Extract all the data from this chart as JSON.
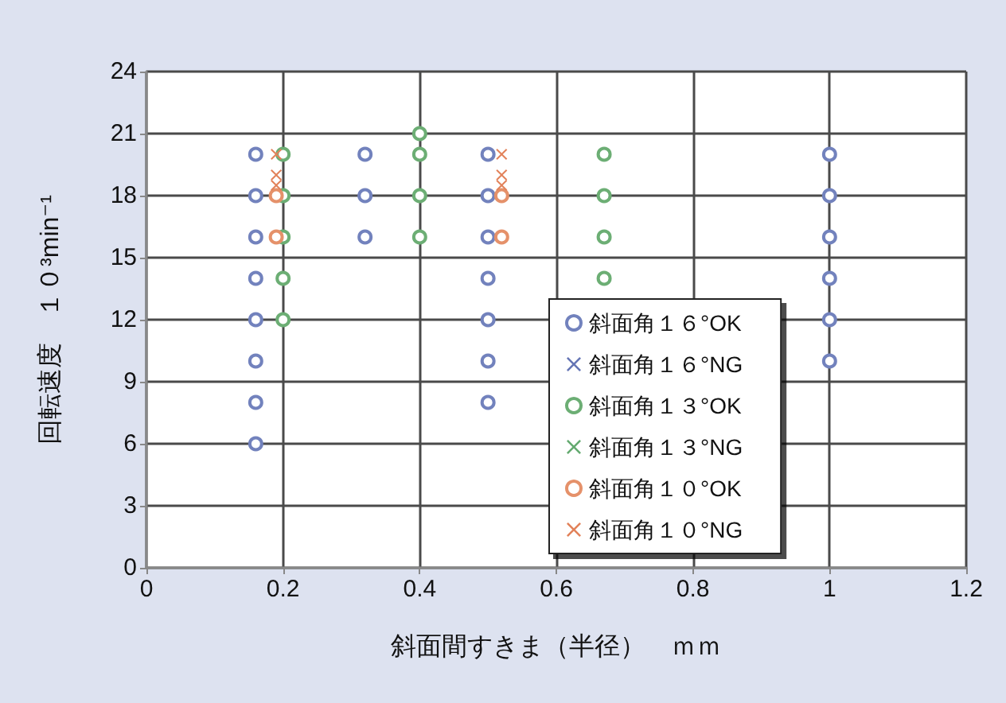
{
  "chart_data": {
    "type": "scatter",
    "xlabel": "斜面間すきま（半径）　ｍｍ",
    "ylabel": "回転速度　１０³min⁻¹",
    "xlim": [
      0,
      1.2
    ],
    "xticks": [
      0,
      0.2,
      0.4,
      0.6,
      0.8,
      1,
      1.2
    ],
    "ylim": [
      0,
      24
    ],
    "yticks": [
      0,
      3,
      6,
      9,
      12,
      15,
      18,
      21,
      24
    ],
    "grid": true,
    "legend": "bottom",
    "series": [
      {
        "name": "斜面角１６°OK",
        "color": "#7282bd",
        "marker": "circle",
        "x": [
          0.16,
          0.16,
          0.16,
          0.16,
          0.16,
          0.16,
          0.16,
          0.16,
          0.32,
          0.32,
          0.32,
          0.5,
          0.5,
          0.5,
          0.5,
          0.5,
          0.5,
          0.5,
          1,
          1,
          1,
          1,
          1,
          1
        ],
        "values": [
          20,
          18,
          16,
          14,
          12,
          10,
          8,
          6,
          20,
          18,
          16,
          20,
          18,
          16,
          14,
          12,
          10,
          8,
          20,
          18,
          16,
          14,
          12,
          10
        ]
      },
      {
        "name": "斜面角１６°NG",
        "color": "#6575b5",
        "marker": "cross"
      },
      {
        "name": "斜面角１３°OK",
        "color": "#6cae74",
        "marker": "circle",
        "x": [
          0.2,
          0.2,
          0.2,
          0.2,
          0.2,
          0.4,
          0.4,
          0.4,
          0.4,
          0.67,
          0.67,
          0.67,
          0.67
        ],
        "values": [
          20,
          18,
          16,
          14,
          12,
          21,
          20,
          18,
          16,
          20,
          18,
          16,
          14
        ]
      },
      {
        "name": "斜面角１３°NG",
        "color": "#64aa70",
        "marker": "cross"
      },
      {
        "name": "斜面角１０°OK",
        "color": "#e5916a",
        "marker": "circle",
        "x": [
          0.19,
          0.19,
          0.52,
          0.52
        ],
        "values": [
          18,
          16,
          18,
          16
        ]
      },
      {
        "name": "斜面角１０°NG",
        "color": "#e2825a",
        "marker": "cross",
        "x": [
          0.19,
          0.19,
          0.19,
          0.52,
          0.52,
          0.52
        ],
        "values": [
          20,
          19,
          18.5,
          20,
          19,
          18.5
        ]
      }
    ]
  }
}
